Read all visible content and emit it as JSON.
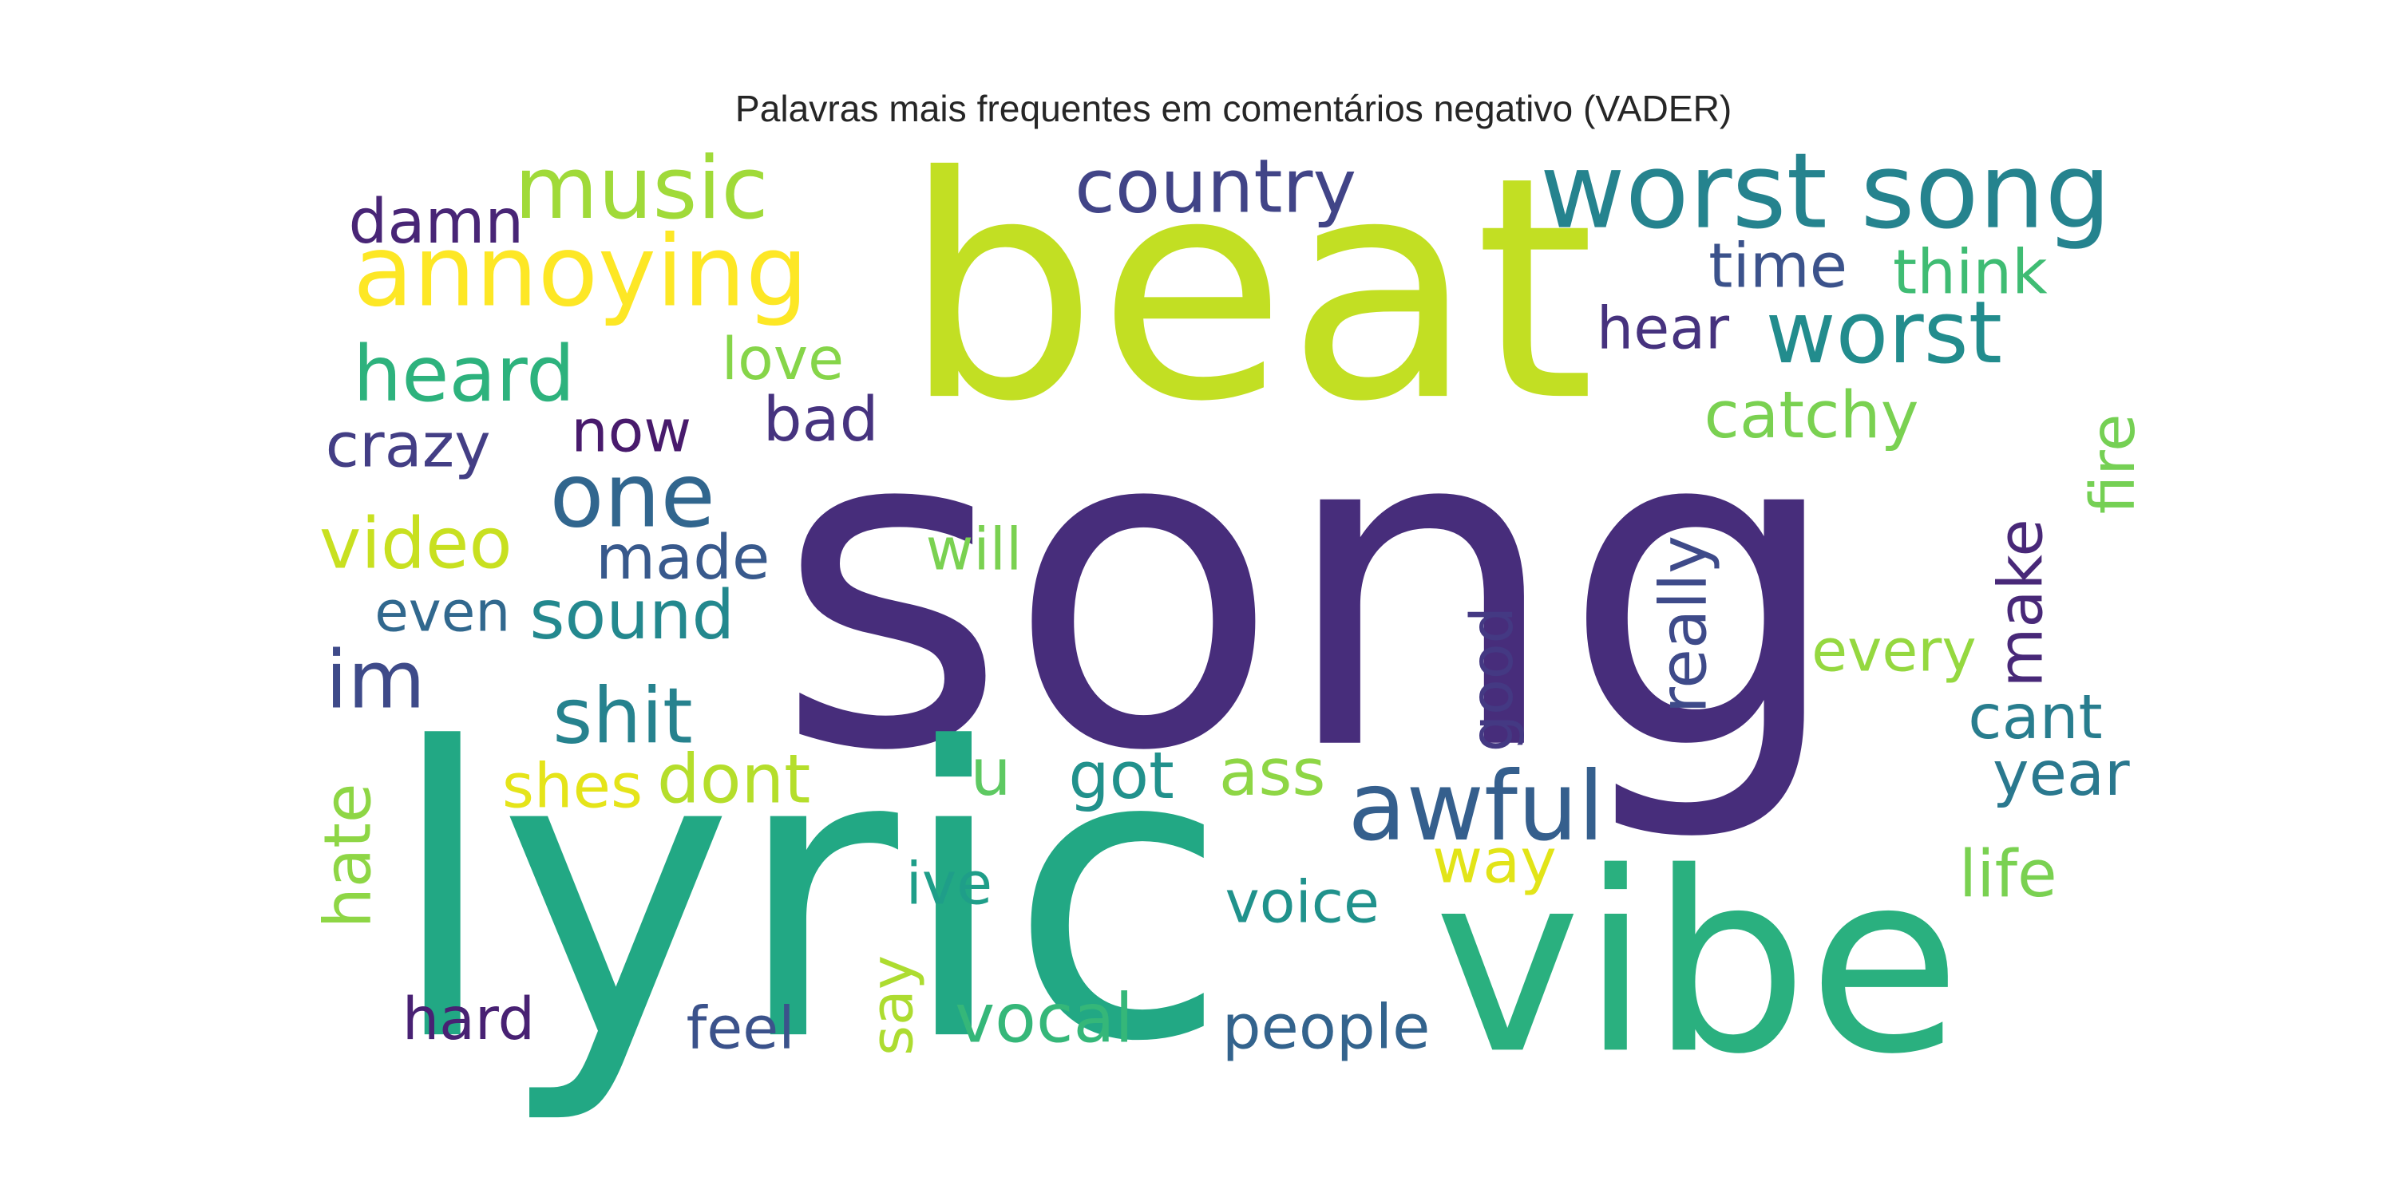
{
  "title": "Palavras mais frequentes em comentários negativo (VADER)",
  "words": [
    {
      "text": "song",
      "color": "#472d7b"
    },
    {
      "text": "beat",
      "color": "#c2df23"
    },
    {
      "text": "lyric",
      "color": "#22a884"
    },
    {
      "text": "vibe",
      "color": "#2ab07f"
    },
    {
      "text": "worst song",
      "color": "#25838e"
    },
    {
      "text": "annoying",
      "color": "#fde725"
    },
    {
      "text": "music",
      "color": "#a0da39"
    },
    {
      "text": "country",
      "color": "#414487"
    },
    {
      "text": "damn",
      "color": "#482576"
    },
    {
      "text": "time",
      "color": "#3b528b"
    },
    {
      "text": "think",
      "color": "#3fbc73"
    },
    {
      "text": "heard",
      "color": "#2db27d"
    },
    {
      "text": "love",
      "color": "#86d549"
    },
    {
      "text": "hear",
      "color": "#46327e"
    },
    {
      "text": "worst",
      "color": "#228c8d"
    },
    {
      "text": "catchy",
      "color": "#7ad151"
    },
    {
      "text": "fire",
      "color": "#75d054"
    },
    {
      "text": "crazy",
      "color": "#433e85"
    },
    {
      "text": "now",
      "color": "#481a6c"
    },
    {
      "text": "bad",
      "color": "#46337f"
    },
    {
      "text": "one",
      "color": "#31668e"
    },
    {
      "text": "video",
      "color": "#c8e020"
    },
    {
      "text": "made",
      "color": "#38598c"
    },
    {
      "text": "will",
      "color": "#7ad151"
    },
    {
      "text": "really",
      "color": "#3e4a89"
    },
    {
      "text": "make",
      "color": "#482878"
    },
    {
      "text": "even",
      "color": "#31688e"
    },
    {
      "text": "sound",
      "color": "#23888e"
    },
    {
      "text": "good",
      "color": "#443983"
    },
    {
      "text": "every",
      "color": "#95d840"
    },
    {
      "text": "im",
      "color": "#3e4a89"
    },
    {
      "text": "shit",
      "color": "#26828e"
    },
    {
      "text": "cant",
      "color": "#287d8e"
    },
    {
      "text": "awful",
      "color": "#355f8d"
    },
    {
      "text": "shes",
      "color": "#e5e419"
    },
    {
      "text": "dont",
      "color": "#b5de2b"
    },
    {
      "text": "u",
      "color": "#5ec962"
    },
    {
      "text": "got",
      "color": "#21918c"
    },
    {
      "text": "ass",
      "color": "#8ed645"
    },
    {
      "text": "year",
      "color": "#2a788e"
    },
    {
      "text": "hate",
      "color": "#8ed645"
    },
    {
      "text": "way",
      "color": "#e2e418"
    },
    {
      "text": "ive",
      "color": "#1f9e89"
    },
    {
      "text": "voice",
      "color": "#20928c"
    },
    {
      "text": "life",
      "color": "#7ad151"
    },
    {
      "text": "say",
      "color": "#addc30"
    },
    {
      "text": "hard",
      "color": "#482173"
    },
    {
      "text": "feel",
      "color": "#3b528b"
    },
    {
      "text": "vocal",
      "color": "#35b779"
    },
    {
      "text": "people",
      "color": "#33638d"
    }
  ]
}
